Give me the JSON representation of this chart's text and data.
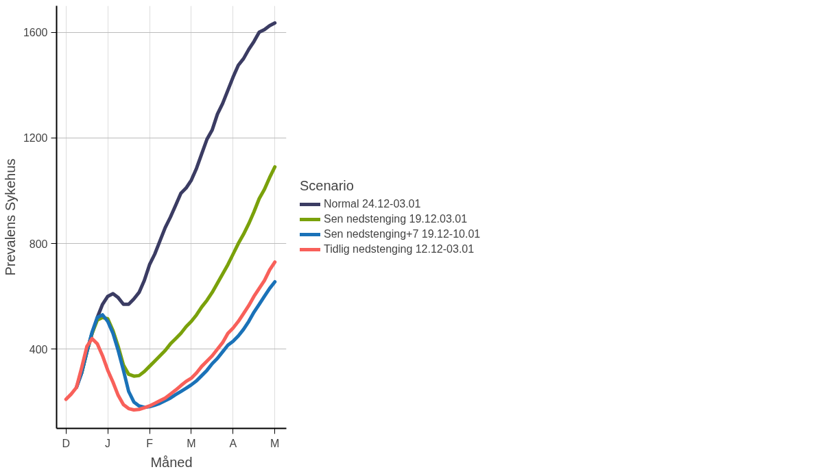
{
  "chart_data": {
    "type": "line",
    "xlabel": "Måned",
    "ylabel": "Prevalens Sykehus",
    "legend_title": "Scenario",
    "legend": "right",
    "grid": true,
    "categories": [
      "D",
      null,
      null,
      null,
      null,
      null,
      null,
      null,
      "J",
      null,
      null,
      null,
      null,
      null,
      null,
      null,
      "F",
      null,
      null,
      null,
      null,
      null,
      null,
      null,
      "M",
      null,
      null,
      null,
      null,
      null,
      null,
      null,
      "A",
      null,
      null,
      null,
      null,
      null,
      null,
      null,
      "M"
    ],
    "ylim": [
      100,
      1700
    ],
    "yticks": [
      400,
      800,
      1200,
      1600
    ],
    "series": [
      {
        "name": "Normal 24.12-03.01",
        "color": "#3b3c63",
        "values": [
          null,
          null,
          255,
          310,
          390,
          460,
          520,
          570,
          600,
          610,
          595,
          570,
          570,
          590,
          615,
          660,
          720,
          760,
          810,
          860,
          900,
          945,
          990,
          1010,
          1040,
          1085,
          1140,
          1195,
          1230,
          1290,
          1330,
          1380,
          1430,
          1475,
          1500,
          1535,
          1565,
          1600,
          1610,
          1625,
          1635
        ]
      },
      {
        "name": "Sen nedstenging 19.12.03.01",
        "color": "#7aa10b",
        "values": [
          null,
          null,
          null,
          310,
          390,
          460,
          510,
          520,
          515,
          470,
          410,
          340,
          305,
          298,
          300,
          315,
          335,
          355,
          375,
          395,
          420,
          440,
          460,
          485,
          505,
          530,
          560,
          585,
          615,
          650,
          685,
          720,
          760,
          800,
          835,
          875,
          920,
          970,
          1005,
          1050,
          1090
        ]
      },
      {
        "name": "Sen nedstenging+7 19.12-10.01",
        "color": "#1a72b8",
        "values": [
          null,
          null,
          255,
          310,
          390,
          465,
          520,
          530,
          505,
          460,
          395,
          320,
          240,
          200,
          185,
          180,
          182,
          188,
          195,
          205,
          215,
          228,
          240,
          252,
          265,
          280,
          300,
          320,
          345,
          365,
          390,
          415,
          430,
          450,
          475,
          505,
          540,
          570,
          600,
          630,
          655
        ]
      },
      {
        "name": "Tidlig nedstenging 12.12-03.01",
        "color": "#f8605a",
        "values": [
          210,
          230,
          255,
          330,
          410,
          440,
          420,
          375,
          320,
          275,
          225,
          190,
          175,
          170,
          172,
          178,
          185,
          195,
          205,
          215,
          230,
          245,
          262,
          278,
          290,
          310,
          335,
          355,
          375,
          400,
          425,
          460,
          480,
          505,
          535,
          565,
          600,
          630,
          660,
          700,
          730
        ]
      }
    ]
  }
}
